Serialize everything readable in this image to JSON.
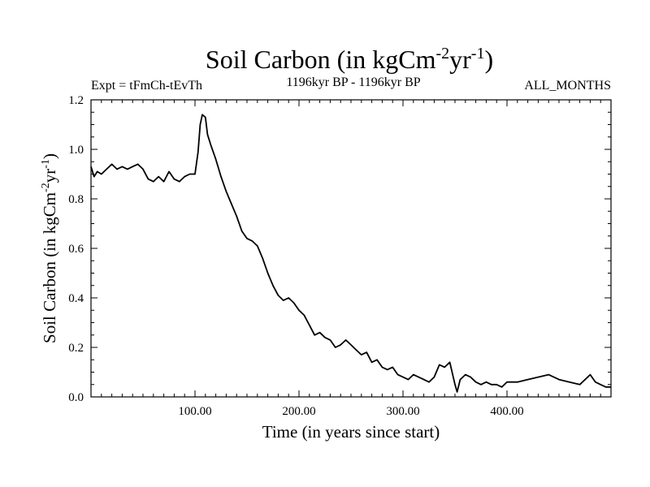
{
  "chart_data": {
    "type": "line",
    "title": "Soil Carbon (in kgCm",
    "title_sup1": "-2",
    "title_mid": "yr",
    "title_sup2": "-1",
    "title_end": ")",
    "subtitle_left": "Expt = tFmCh-tEvTh",
    "subtitle_center": "1196kyr BP - 1196kyr BP",
    "subtitle_right": "ALL_MONTHS",
    "xlabel": "Time (in years since start)",
    "ylabel": "Soil Carbon (in kgCm",
    "ylabel_sup1": "-2",
    "ylabel_mid": "yr",
    "ylabel_sup2": "-1",
    "ylabel_end": ")",
    "xlim": [
      0,
      500
    ],
    "ylim": [
      0.0,
      1.2
    ],
    "xticks": [
      100,
      200,
      300,
      400
    ],
    "xtick_labels": [
      "100.00",
      "200.00",
      "300.00",
      "400.00"
    ],
    "yticks": [
      0.0,
      0.2,
      0.4,
      0.6,
      0.8,
      1.0,
      1.2
    ],
    "ytick_labels": [
      "0.0",
      "0.2",
      "0.4",
      "0.6",
      "0.8",
      "1.0",
      "1.2"
    ],
    "series": [
      {
        "name": "Soil Carbon",
        "color": "#000000",
        "x": [
          0,
          3,
          6,
          10,
          15,
          20,
          25,
          30,
          35,
          40,
          45,
          50,
          55,
          60,
          65,
          70,
          75,
          80,
          85,
          90,
          95,
          100,
          103,
          105,
          107,
          110,
          112,
          115,
          120,
          125,
          130,
          135,
          140,
          145,
          150,
          155,
          160,
          165,
          170,
          175,
          180,
          185,
          190,
          195,
          200,
          205,
          210,
          215,
          220,
          225,
          230,
          235,
          240,
          245,
          250,
          255,
          260,
          265,
          270,
          275,
          280,
          285,
          290,
          295,
          300,
          305,
          310,
          315,
          320,
          325,
          330,
          335,
          340,
          345,
          350,
          352,
          355,
          360,
          365,
          370,
          375,
          380,
          385,
          390,
          395,
          400,
          410,
          420,
          430,
          440,
          450,
          460,
          470,
          480,
          485,
          490,
          495,
          500
        ],
        "values": [
          0.93,
          0.89,
          0.91,
          0.9,
          0.92,
          0.94,
          0.92,
          0.93,
          0.92,
          0.93,
          0.94,
          0.92,
          0.88,
          0.87,
          0.89,
          0.87,
          0.91,
          0.88,
          0.87,
          0.89,
          0.9,
          0.9,
          0.99,
          1.1,
          1.14,
          1.13,
          1.06,
          1.02,
          0.96,
          0.89,
          0.83,
          0.78,
          0.73,
          0.67,
          0.64,
          0.63,
          0.61,
          0.56,
          0.5,
          0.45,
          0.41,
          0.39,
          0.4,
          0.38,
          0.35,
          0.33,
          0.29,
          0.25,
          0.26,
          0.24,
          0.23,
          0.2,
          0.21,
          0.23,
          0.21,
          0.19,
          0.17,
          0.18,
          0.14,
          0.15,
          0.12,
          0.11,
          0.12,
          0.09,
          0.08,
          0.07,
          0.09,
          0.08,
          0.07,
          0.06,
          0.08,
          0.13,
          0.12,
          0.14,
          0.05,
          0.02,
          0.07,
          0.09,
          0.08,
          0.06,
          0.05,
          0.06,
          0.05,
          0.05,
          0.04,
          0.06,
          0.06,
          0.07,
          0.08,
          0.09,
          0.07,
          0.06,
          0.05,
          0.09,
          0.06,
          0.05,
          0.04,
          0.04
        ]
      }
    ]
  }
}
